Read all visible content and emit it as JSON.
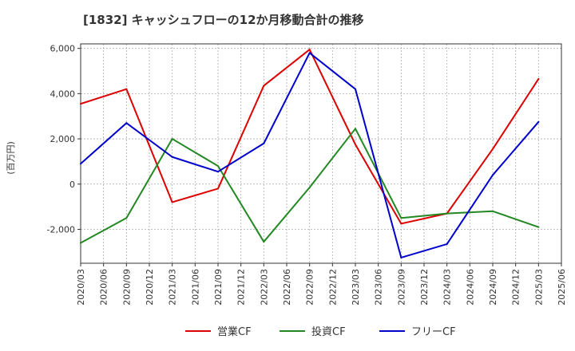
{
  "chart_data": {
    "type": "line",
    "title": "[1832]  キャッシュフローの12か月移動合計の推移",
    "ylabel": "(百万円)",
    "xlabel": "",
    "ylim": [
      -3500,
      6200
    ],
    "y_ticks": [
      -2000,
      0,
      2000,
      4000,
      6000
    ],
    "y_tick_labels": [
      "-2,000",
      "0",
      "2,000",
      "4,000",
      "6,000"
    ],
    "categories": [
      "2020/03",
      "2020/06",
      "2020/09",
      "2020/12",
      "2021/03",
      "2021/06",
      "2021/09",
      "2021/12",
      "2022/03",
      "2022/06",
      "2022/09",
      "2022/12",
      "2023/03",
      "2023/06",
      "2023/09",
      "2023/12",
      "2024/03",
      "2024/06",
      "2024/09",
      "2024/12",
      "2025/03",
      "2025/06"
    ],
    "grid": true,
    "legend_position": "bottom",
    "series": [
      {
        "name": "営業CF",
        "color": "#dd0000",
        "values": [
          3550,
          null,
          4200,
          null,
          -800,
          null,
          -200,
          null,
          4350,
          null,
          5950,
          null,
          1750,
          null,
          -1750,
          null,
          -1300,
          null,
          1550,
          null,
          4650,
          null
        ]
      },
      {
        "name": "投資CF",
        "color": "#228822",
        "values": [
          -2600,
          null,
          -1500,
          null,
          2000,
          null,
          800,
          null,
          -2550,
          null,
          -150,
          null,
          2450,
          null,
          -1500,
          null,
          -1300,
          null,
          -1200,
          null,
          -1900,
          null
        ]
      },
      {
        "name": "フリーCF",
        "color": "#0000cc",
        "values": [
          900,
          null,
          2700,
          null,
          1200,
          null,
          550,
          null,
          1800,
          null,
          5800,
          null,
          4200,
          null,
          -3250,
          null,
          -2650,
          null,
          400,
          null,
          2750,
          null
        ]
      }
    ]
  }
}
